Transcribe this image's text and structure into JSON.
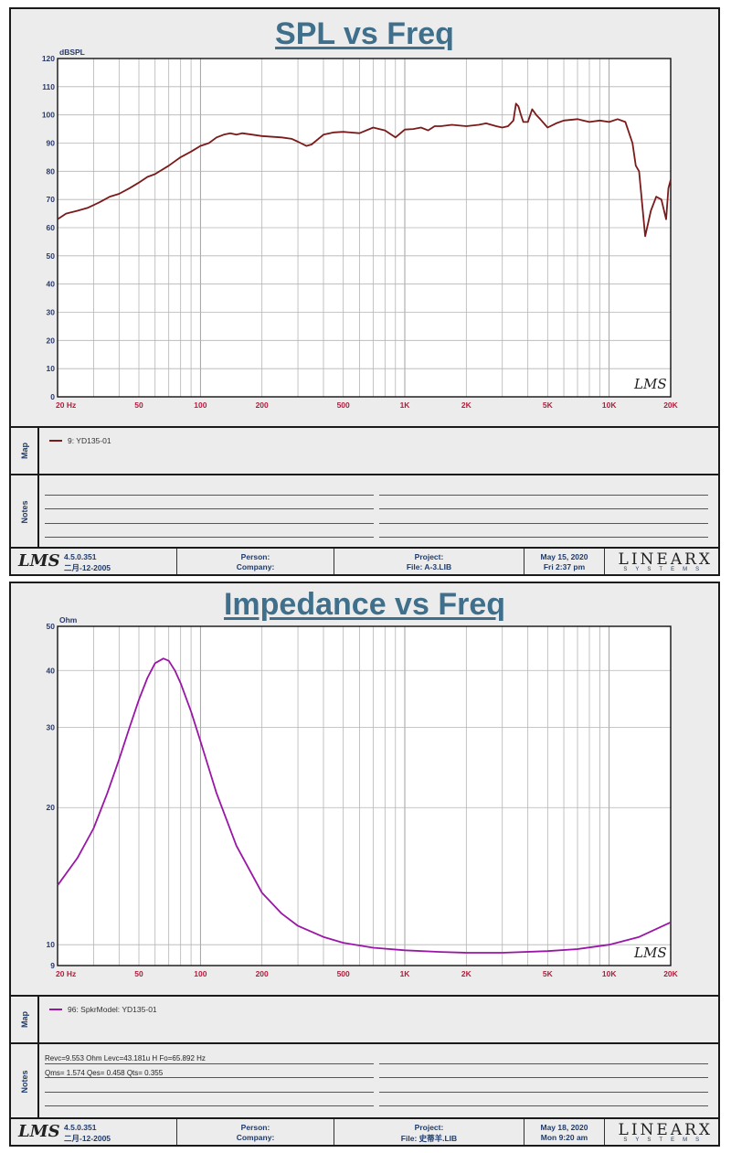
{
  "colors": {
    "spl_trace": "#7a1a1a",
    "imp_trace": "#9a16a6",
    "axis_red": "#b01e3c",
    "label_blue": "#2b3a67",
    "title": "#3f6f8a"
  },
  "panel1": {
    "title": "SPL vs Freq",
    "ylabel": "dBSPL",
    "map_entry": "9: YD135-01",
    "notes_left": [
      "",
      "",
      "",
      ""
    ],
    "notes_right": [
      "",
      "",
      "",
      ""
    ],
    "footer": {
      "version": "4.5.0.351",
      "date_code": "二月-12-2005",
      "person": "Person:",
      "company": "Company:",
      "project": "Project:",
      "file": "File: A-3.LIB",
      "date": "May 15, 2020",
      "time": "Fri  2:37 pm"
    }
  },
  "panel2": {
    "title": "Impedance vs Freq",
    "ylabel": "Ohm",
    "map_entry": "96: SpkrModel: YD135-01",
    "notes_left": [
      "Revc=9.553 Ohm  Levc=43.181u H  Fo=65.892 Hz",
      "Qms= 1.574  Qes= 0.458  Qts= 0.355",
      "",
      ""
    ],
    "notes_right": [
      "",
      "",
      "",
      ""
    ],
    "footer": {
      "version": "4.5.0.351",
      "date_code": "二月-12-2005",
      "person": "Person:",
      "company": "Company:",
      "project": "Project:",
      "file": "File: 史蒂羊.LIB",
      "date": "May 18, 2020",
      "time": "Mon  9:20 am"
    }
  },
  "branding": {
    "lms": "LMS",
    "linearx": "LINEARX",
    "systems": "SYSTEMS"
  },
  "chart_data": [
    {
      "type": "line",
      "title": "SPL vs Freq",
      "xlabel": "",
      "ylabel": "dBSPL",
      "xscale": "log",
      "xlim": [
        20,
        20000
      ],
      "ylim": [
        0,
        120
      ],
      "grid": true,
      "x_tick_labels": [
        "20  Hz",
        "50",
        "100",
        "200",
        "500",
        "1K",
        "2K",
        "5K",
        "10K",
        "20K"
      ],
      "x_tick_values": [
        20,
        50,
        100,
        200,
        500,
        1000,
        2000,
        5000,
        10000,
        20000
      ],
      "y_tick_labels": [
        "0",
        "10",
        "20",
        "30",
        "40",
        "50",
        "60",
        "70",
        "80",
        "90",
        "100",
        "110",
        "120"
      ],
      "y_tick_values": [
        0,
        10,
        20,
        30,
        40,
        50,
        60,
        70,
        80,
        90,
        100,
        110,
        120
      ],
      "series": [
        {
          "name": "9: YD135-01",
          "x": [
            20,
            22,
            25,
            28,
            30,
            32,
            34,
            36,
            40,
            45,
            50,
            55,
            60,
            70,
            80,
            90,
            100,
            110,
            120,
            130,
            140,
            150,
            160,
            180,
            200,
            250,
            280,
            300,
            330,
            350,
            400,
            450,
            500,
            600,
            700,
            800,
            900,
            1000,
            1100,
            1200,
            1300,
            1400,
            1500,
            1700,
            2000,
            2300,
            2500,
            2800,
            3000,
            3200,
            3400,
            3500,
            3600,
            3700,
            3800,
            4000,
            4200,
            4400,
            4600,
            5000,
            5500,
            6000,
            7000,
            8000,
            9000,
            10000,
            11000,
            12000,
            13000,
            13500,
            14000,
            15000,
            16000,
            17000,
            18000,
            19000,
            19500,
            20000
          ],
          "y": [
            63,
            65,
            66,
            67,
            68,
            69,
            70,
            71,
            72,
            74,
            76,
            78,
            79,
            82,
            85,
            87,
            89,
            90,
            92,
            93,
            93.5,
            93,
            93.5,
            93,
            92.5,
            92,
            91.5,
            90.5,
            89,
            89.5,
            93,
            93.8,
            94,
            93.5,
            95.5,
            94.5,
            92,
            94.8,
            95,
            95.5,
            94.5,
            96,
            96,
            96.5,
            96,
            96.5,
            97,
            96,
            95.5,
            96,
            98,
            104,
            103,
            100,
            97.5,
            97.5,
            102,
            100,
            98.5,
            95.5,
            97,
            98,
            98.5,
            97.5,
            98,
            97.5,
            98.5,
            97.5,
            90,
            82,
            80,
            57,
            66,
            71,
            70,
            63,
            74,
            77
          ]
        }
      ]
    },
    {
      "type": "line",
      "title": "Impedance vs Freq",
      "xlabel": "",
      "ylabel": "Ohm",
      "xscale": "log",
      "yscale": "log",
      "xlim": [
        20,
        20000
      ],
      "ylim": [
        9,
        50
      ],
      "grid": true,
      "x_tick_labels": [
        "20  Hz",
        "50",
        "100",
        "200",
        "500",
        "1K",
        "2K",
        "5K",
        "10K",
        "20K"
      ],
      "x_tick_values": [
        20,
        50,
        100,
        200,
        500,
        1000,
        2000,
        5000,
        10000,
        20000
      ],
      "y_tick_labels": [
        "9",
        "10",
        "20",
        "30",
        "40",
        "50"
      ],
      "y_tick_values": [
        9,
        10,
        20,
        30,
        40,
        50
      ],
      "series": [
        {
          "name": "96: SpkrModel: YD135-01",
          "x": [
            20,
            25,
            30,
            35,
            40,
            45,
            50,
            55,
            60,
            65.9,
            70,
            75,
            80,
            90,
            100,
            120,
            150,
            200,
            250,
            300,
            400,
            500,
            700,
            1000,
            1500,
            2000,
            3000,
            5000,
            7000,
            10000,
            14000,
            20000
          ],
          "y": [
            13.5,
            15.5,
            18,
            21.5,
            25.5,
            30,
            34.5,
            38.5,
            41.5,
            42.5,
            42,
            40,
            37.5,
            32.5,
            28,
            21.5,
            16.5,
            13,
            11.7,
            11,
            10.4,
            10.1,
            9.85,
            9.72,
            9.64,
            9.6,
            9.6,
            9.68,
            9.78,
            10,
            10.4,
            11.2
          ]
        }
      ]
    }
  ]
}
